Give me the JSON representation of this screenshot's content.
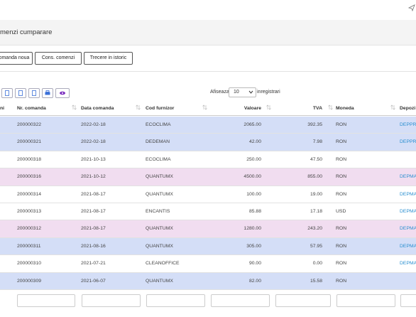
{
  "header": {
    "title": "menzi cumparare"
  },
  "buttons": [
    "omanda noua",
    "Cons. comenzi",
    "Trecere in istoric"
  ],
  "length_menu": {
    "prefix": "Afiseaza",
    "value": "10",
    "suffix": "inregistrari"
  },
  "table": {
    "columns": [
      "ni",
      "Nr. comanda",
      "Data comanda",
      "Cod furnizor",
      "Valoare",
      "TVA",
      "Moneda",
      "Depozi"
    ],
    "rows": [
      {
        "color": "#d4def7",
        "cells": [
          "200000322",
          "2022-02-18",
          "ECOCLIMA",
          "2065.00",
          "392.35",
          "RON",
          "DEPPRI"
        ]
      },
      {
        "color": "#d4def7",
        "cells": [
          "200000321",
          "2022-02-18",
          "DEDEMAN",
          "42.00",
          "7.98",
          "RON",
          "DEPPRI"
        ]
      },
      {
        "color": "#ffffff",
        "cells": [
          "200000318",
          "2021-10-13",
          "ECOCLIMA",
          "250.00",
          "47.50",
          "RON",
          null
        ]
      },
      {
        "color": "#f1ddf0",
        "cells": [
          "200000316",
          "2021-10-12",
          "QUANTUMX",
          "4500.00",
          "855.00",
          "RON",
          "DEPMA"
        ]
      },
      {
        "color": "#ffffff",
        "cells": [
          "200000314",
          "2021-08-17",
          "QUANTUMX",
          "100.00",
          "19.00",
          "RON",
          "DEPMA"
        ]
      },
      {
        "color": "#ffffff",
        "cells": [
          "200000313",
          "2021-08-17",
          "ENCANTIS",
          "85.88",
          "17.18",
          "USD",
          "DEPMA"
        ]
      },
      {
        "color": "#f1ddf0",
        "cells": [
          "200000312",
          "2021-08-17",
          "QUANTUMX",
          "1280.00",
          "243.20",
          "RON",
          "DEPMA"
        ]
      },
      {
        "color": "#d4def7",
        "cells": [
          "200000311",
          "2021-08-16",
          "QUANTUMX",
          "305.00",
          "57.95",
          "RON",
          "DEPMA"
        ]
      },
      {
        "color": "#ffffff",
        "cells": [
          "200000310",
          "2021-07-21",
          "CLEANOFFICE",
          "90.00",
          "0.00",
          "RON",
          "DEPMA"
        ]
      },
      {
        "color": "#d4def7",
        "cells": [
          "200000309",
          "2021-06-07",
          "QUANTUMX",
          "82.00",
          "15.58",
          "RON",
          null
        ]
      }
    ]
  }
}
